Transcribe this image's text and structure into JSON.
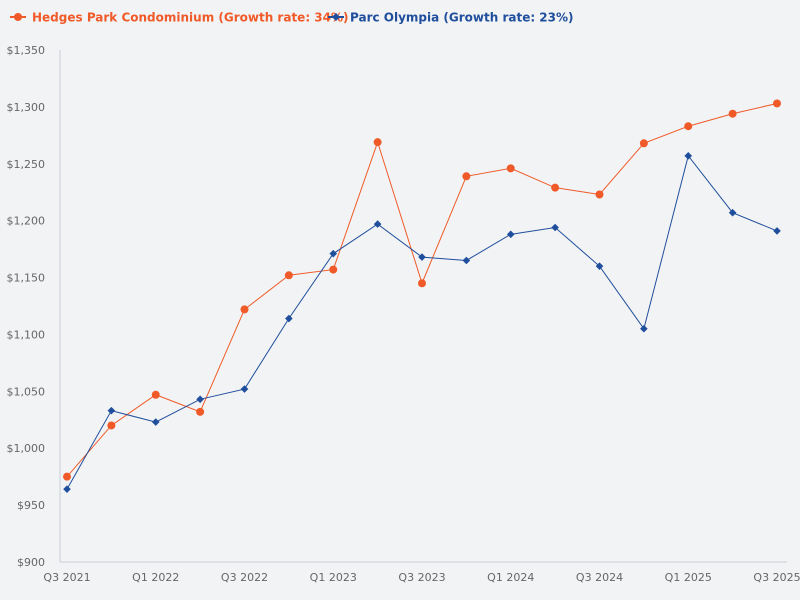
{
  "chart_data": {
    "type": "line",
    "title": "",
    "xlabel": "",
    "ylabel": "",
    "ylim": [
      900,
      1350
    ],
    "y_ticks": [
      900,
      950,
      1000,
      1050,
      1100,
      1150,
      1200,
      1250,
      1300,
      1350
    ],
    "y_tick_labels": [
      "$900",
      "$950",
      "$1,000",
      "$1,050",
      "$1,100",
      "$1,150",
      "$1,200",
      "$1,250",
      "$1,300",
      "$1,350"
    ],
    "categories": [
      "Q3 2021",
      "Q4 2021",
      "Q1 2022",
      "Q2 2022",
      "Q3 2022",
      "Q4 2022",
      "Q1 2023",
      "Q2 2023",
      "Q3 2023",
      "Q4 2023",
      "Q1 2024",
      "Q2 2024",
      "Q3 2024",
      "Q4 2024",
      "Q1 2025",
      "Q2 2025",
      "Q3 2025"
    ],
    "x_tick_labels_shown": [
      "Q3 2021",
      "",
      "Q1 2022",
      "",
      "Q3 2022",
      "",
      "Q1 2023",
      "",
      "Q3 2023",
      "",
      "Q1 2024",
      "",
      "Q3 2024",
      "",
      "Q1 2025",
      "",
      "Q3 2025"
    ],
    "legend_position": "top-left",
    "series": [
      {
        "name": "Hedges Park Condominium (Growth rate: 34%)",
        "color": "#f05a28",
        "marker": "circle",
        "values": [
          975,
          1020,
          1047,
          1032,
          1122,
          1152,
          1157,
          1269,
          1145,
          1239,
          1246,
          1229,
          1223,
          1268,
          1283,
          1294,
          1303
        ]
      },
      {
        "name": "Parc Olympia (Growth rate: 23%)",
        "color": "#1f4e9c",
        "marker": "diamond",
        "values": [
          964,
          1033,
          1023,
          1043,
          1052,
          1114,
          1171,
          1197,
          1168,
          1165,
          1188,
          1194,
          1160,
          1105,
          1257,
          1207,
          1191
        ]
      }
    ]
  }
}
